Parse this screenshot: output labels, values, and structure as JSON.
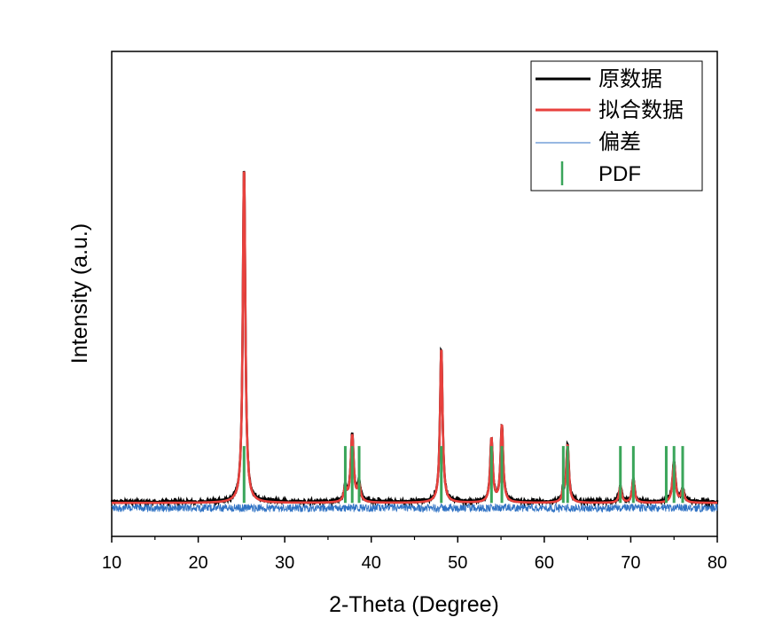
{
  "chart_data": {
    "type": "line",
    "xlabel": "2-Theta (Degree)",
    "ylabel": "Intensity (a.u.)",
    "xlim": [
      10,
      80
    ],
    "ylim": [
      -0.1,
      1.35
    ],
    "xticks": [
      "10",
      "20",
      "30",
      "40",
      "50",
      "60",
      "70",
      "80"
    ],
    "yticks_shown": false,
    "legend_position": "top-right",
    "legend": [
      {
        "label": "原数据",
        "color": "#000000",
        "style": "thick-line"
      },
      {
        "label": "拟合数据",
        "color": "#e8413d",
        "style": "thick-line"
      },
      {
        "label": "偏差",
        "color": "#2f72c4",
        "style": "thin-line"
      },
      {
        "label": "PDF",
        "color": "#3aa55a",
        "style": "vertical-tick"
      }
    ],
    "baseline": 0.0,
    "peaks": [
      {
        "x": 25.3,
        "height": 1.0,
        "width": 0.35
      },
      {
        "x": 37.0,
        "height": 0.04,
        "width": 0.4
      },
      {
        "x": 37.8,
        "height": 0.2,
        "width": 0.4
      },
      {
        "x": 38.6,
        "height": 0.05,
        "width": 0.4
      },
      {
        "x": 48.1,
        "height": 0.46,
        "width": 0.35
      },
      {
        "x": 53.9,
        "height": 0.19,
        "width": 0.35
      },
      {
        "x": 55.1,
        "height": 0.23,
        "width": 0.35
      },
      {
        "x": 62.2,
        "height": 0.03,
        "width": 0.35
      },
      {
        "x": 62.7,
        "height": 0.17,
        "width": 0.35
      },
      {
        "x": 68.8,
        "height": 0.05,
        "width": 0.35
      },
      {
        "x": 70.3,
        "height": 0.07,
        "width": 0.35
      },
      {
        "x": 75.0,
        "height": 0.12,
        "width": 0.4
      },
      {
        "x": 76.0,
        "height": 0.04,
        "width": 0.4
      }
    ],
    "pdf_positions": [
      25.3,
      37.0,
      37.8,
      38.6,
      48.1,
      53.9,
      55.1,
      62.2,
      62.7,
      68.8,
      70.3,
      74.1,
      75.0,
      76.0
    ],
    "pdf_height": 0.17,
    "difference_offset": -0.015,
    "difference_noise": 0.012
  }
}
